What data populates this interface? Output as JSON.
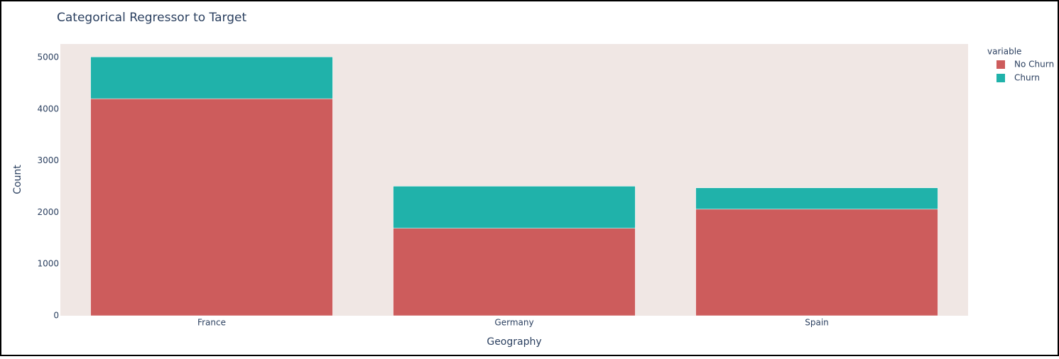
{
  "chart_data": {
    "type": "stacked_bar",
    "title": "Categorical Regressor to Target",
    "x_label": "Geography",
    "y_label": "Count",
    "legend_title": "variable",
    "categories": [
      "France",
      "Germany",
      "Spain"
    ],
    "series": [
      {
        "name": "No Churn",
        "color": "#cd5c5c",
        "values": [
          4204,
          1695,
          2064
        ]
      },
      {
        "name": "Churn",
        "color": "#20b2aa",
        "values": [
          810,
          814,
          413
        ]
      }
    ],
    "ylim": [
      0,
      5264
    ],
    "yticks": [
      0,
      1000,
      2000,
      3000,
      4000,
      5000
    ],
    "plot_background": "#f0e7e4",
    "legend_position": "upper right"
  }
}
